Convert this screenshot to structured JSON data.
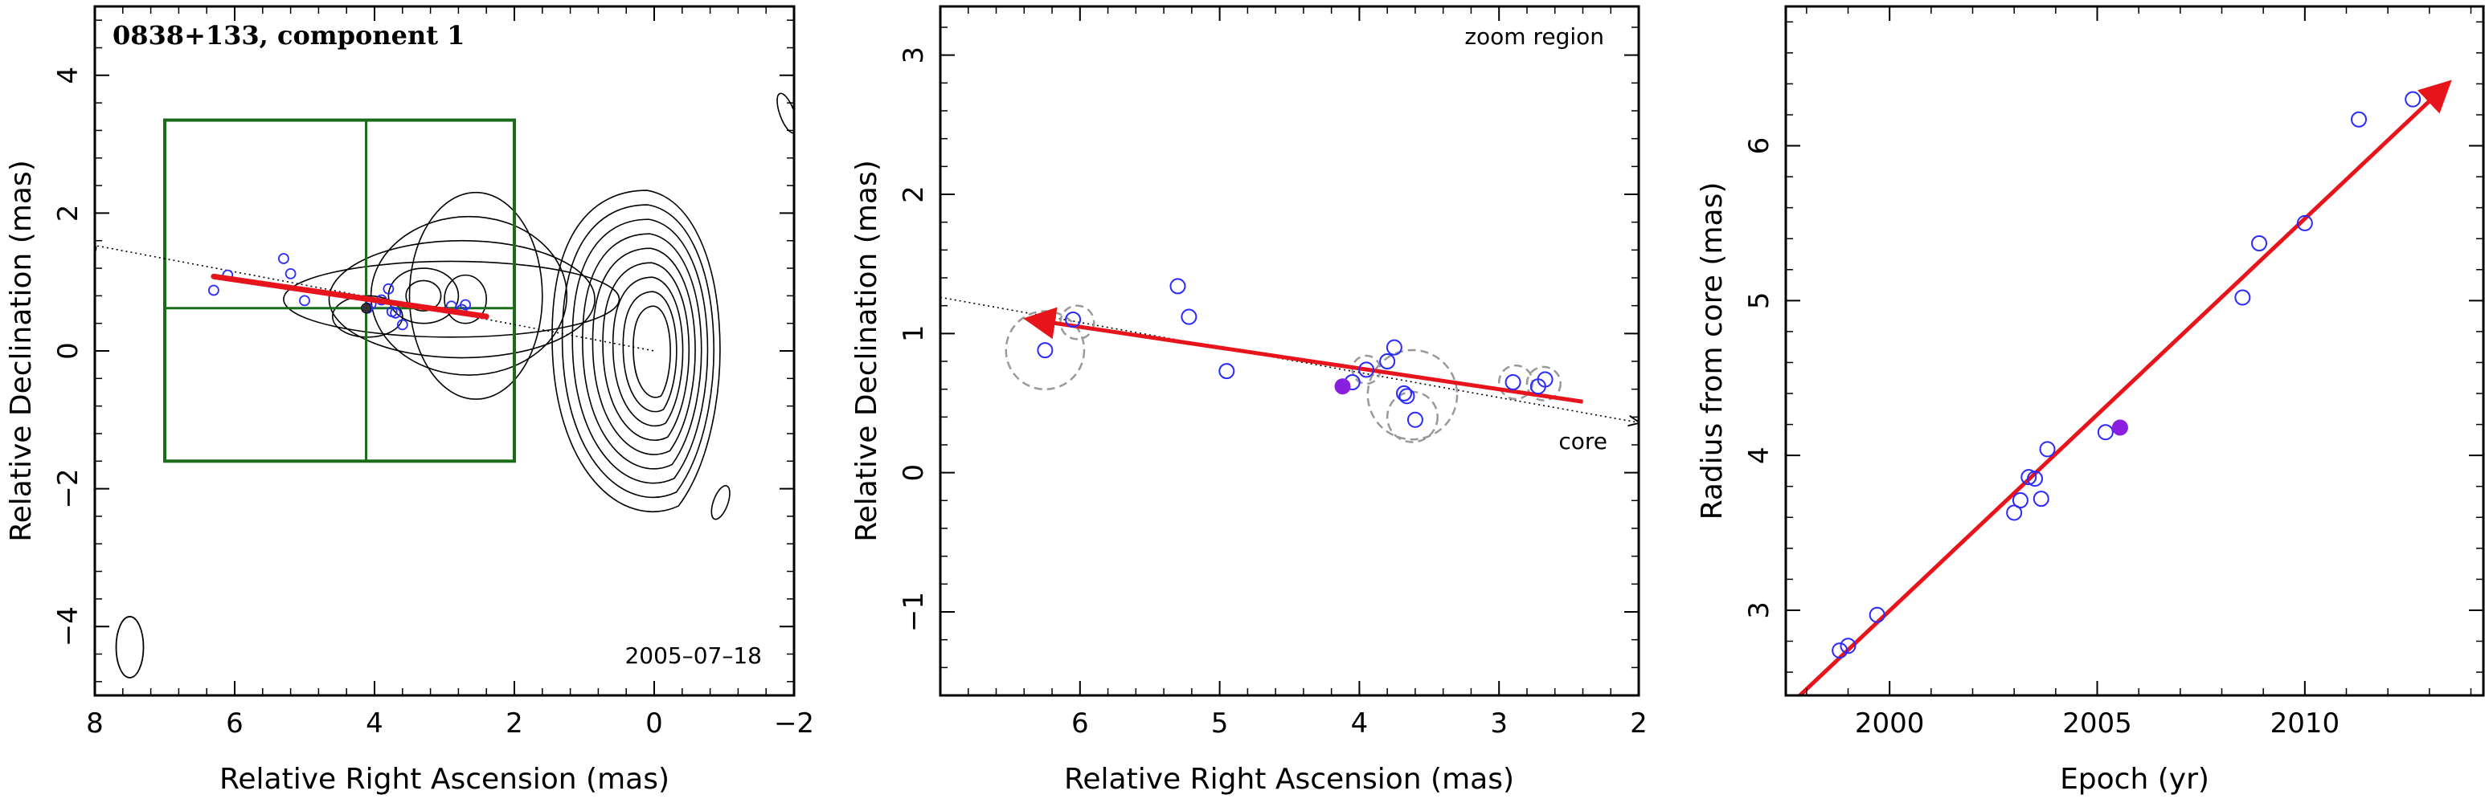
{
  "chart_data": [
    {
      "type": "scatter",
      "title": "0838+133, component 1",
      "annotation": "2005–07–18",
      "xlabel": "Relative Right Ascension (mas)",
      "ylabel": "Relative Declination (mas)",
      "xlim": [
        8,
        -2
      ],
      "ylim": [
        -5,
        5
      ],
      "xticks": [
        "8",
        "6",
        "4",
        "2",
        "0",
        "−2"
      ],
      "yticks": [
        "−4",
        "−2",
        "0",
        "2",
        "4"
      ],
      "positions": {
        "x": [
          6.3,
          6.1,
          5.3,
          5.2,
          5.0,
          4.1,
          4.05,
          3.9,
          3.8,
          3.75,
          3.7,
          3.6,
          2.9,
          2.75,
          2.7
        ],
        "y": [
          0.88,
          1.1,
          1.34,
          1.12,
          0.73,
          0.62,
          0.68,
          0.74,
          0.9,
          0.57,
          0.55,
          0.38,
          0.65,
          0.6,
          0.67
        ]
      },
      "trajectory": {
        "x": [
          6.3,
          2.4
        ],
        "y": [
          1.08,
          0.5
        ]
      },
      "ejection_axis": {
        "x": [
          8.1,
          0.0
        ],
        "y": [
          1.55,
          0.0
        ]
      },
      "zoom_region": {
        "x": [
          7.0,
          2.0
        ],
        "y": [
          -1.6,
          3.35
        ]
      },
      "highlight_color": "#1a6b1a",
      "trajectory_color": "#e8141b",
      "point_color": "#2a2aff"
    },
    {
      "type": "scatter",
      "annotation": "zoom region",
      "core_label": "core",
      "xlabel": "Relative Right Ascension (mas)",
      "ylabel": "Relative Declination (mas)",
      "xlim": [
        7.0,
        2.0
      ],
      "ylim": [
        -1.6,
        3.35
      ],
      "xticks": [
        "6",
        "5",
        "4",
        "3",
        "2"
      ],
      "yticks": [
        "−1",
        "0",
        "1",
        "2",
        "3"
      ],
      "points": {
        "x": [
          6.25,
          6.05,
          5.3,
          5.22,
          4.95,
          4.05,
          3.95,
          3.8,
          3.75,
          3.68,
          3.66,
          3.6,
          2.9,
          2.72,
          2.67
        ],
        "y": [
          0.88,
          1.1,
          1.34,
          1.12,
          0.73,
          0.65,
          0.74,
          0.8,
          0.9,
          0.57,
          0.55,
          0.38,
          0.65,
          0.62,
          0.67
        ]
      },
      "epoch_point": {
        "x": 4.12,
        "y": 0.62
      },
      "error_circles": {
        "x": [
          6.25,
          6.02,
          3.95,
          3.62,
          3.62,
          2.88,
          2.68
        ],
        "y": [
          0.88,
          1.08,
          0.74,
          0.56,
          0.4,
          0.65,
          0.64
        ],
        "r": [
          0.28,
          0.12,
          0.1,
          0.32,
          0.18,
          0.12,
          0.12
        ]
      },
      "trajectory": {
        "x": [
          2.4,
          6.35
        ],
        "y": [
          0.51,
          1.1
        ]
      },
      "ejection_axis": {
        "x": [
          7.0,
          2.0
        ],
        "y": [
          1.26,
          0.36
        ]
      },
      "trajectory_color": "#e8141b",
      "point_color": "#2a2aff",
      "highlight_color": "#8b1fe0"
    },
    {
      "type": "scatter",
      "xlabel": "Epoch (yr)",
      "ylabel": "Radius from core (mas)",
      "xlim": [
        1997.5,
        2014.3
      ],
      "ylim": [
        2.45,
        6.9
      ],
      "xticks": [
        "2000",
        "2005",
        "2010"
      ],
      "yticks": [
        "3",
        "4",
        "5",
        "6"
      ],
      "points": {
        "x": [
          1998.8,
          1999.0,
          1999.7,
          2003.0,
          2003.15,
          2003.35,
          2003.5,
          2003.65,
          2003.8,
          2005.2,
          2008.5,
          2008.9,
          2010.0,
          2011.3,
          2012.6
        ],
        "y": [
          2.74,
          2.77,
          2.97,
          3.63,
          3.71,
          3.86,
          3.85,
          3.72,
          4.04,
          4.15,
          5.02,
          5.37,
          5.5,
          6.17,
          6.3
        ]
      },
      "epoch_point": {
        "x": 2005.55,
        "y": 4.18
      },
      "fit": {
        "x": [
          1997.8,
          2013.4
        ],
        "y": [
          2.44,
          6.39
        ]
      },
      "trajectory_color": "#e8141b",
      "point_color": "#2a2aff",
      "highlight_color": "#8b1fe0"
    }
  ]
}
